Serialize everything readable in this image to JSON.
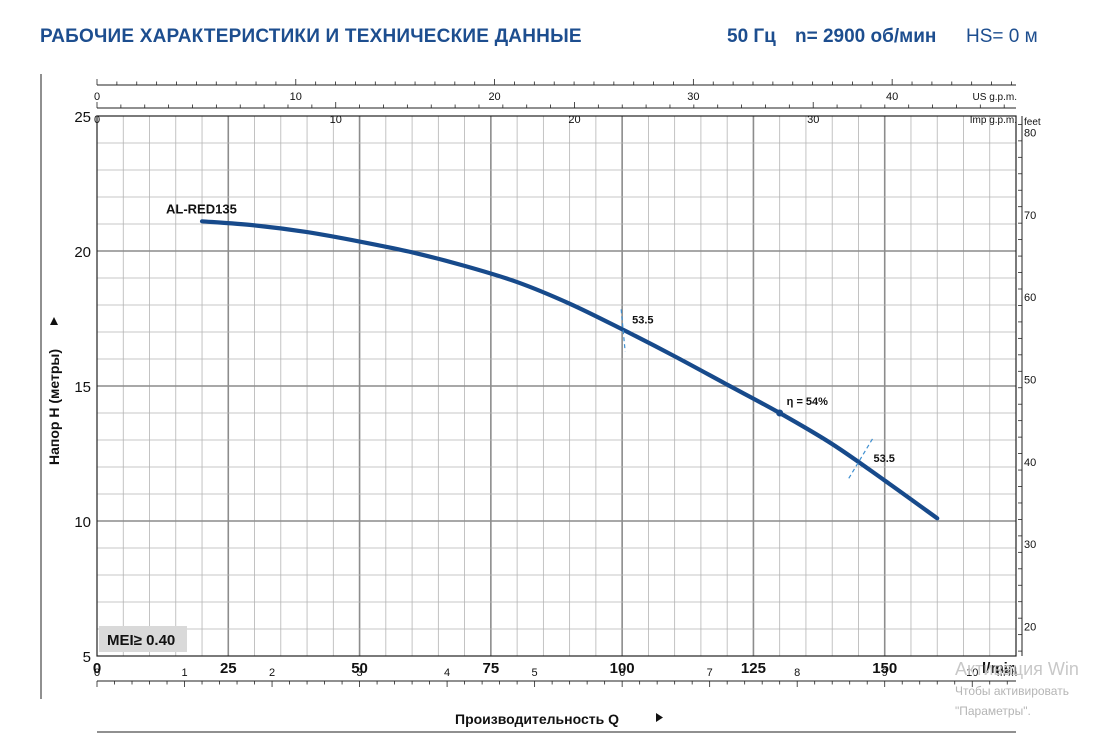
{
  "header": {
    "title": "РАБОЧИЕ ХАРАКТЕРИСТИКИ И ТЕХНИЧЕСКИЕ ДАННЫЕ",
    "frequency": "50 Гц",
    "speed": "n= 2900 об/мин",
    "hs": "HS= 0 м"
  },
  "watermark": {
    "line1": "Активация Win",
    "line2": "Чтобы активировать",
    "line3": "\"Параметры\"."
  },
  "colors": {
    "curve": "#174a8b",
    "grid": "#9a9a9a",
    "efficiency_marks": "#3f8fd0",
    "header_text": "#1d4e8f"
  },
  "chart_data": {
    "type": "line",
    "series": [
      {
        "name": "AL-RED135",
        "x": [
          20,
          30,
          40,
          50,
          60,
          70,
          80,
          90,
          100,
          110,
          120,
          130,
          140,
          150,
          160
        ],
        "values": [
          21.1,
          20.95,
          20.7,
          20.35,
          19.95,
          19.45,
          18.85,
          18.05,
          17.1,
          16.1,
          15.05,
          14.0,
          12.85,
          11.5,
          10.1
        ]
      }
    ],
    "xlabel": "Производительность Q",
    "x_unit": "l/min",
    "xlim": [
      0,
      175
    ],
    "x_ticks": [
      0,
      25,
      50,
      75,
      100,
      125,
      150
    ],
    "ylabel": "Напор H (метры)",
    "ylim": [
      5,
      25
    ],
    "y_ticks": [
      5,
      10,
      15,
      20,
      25
    ],
    "grid": true,
    "secondary_axes": {
      "us_gpm": {
        "label": "US g.p.m.",
        "ticks": [
          0,
          10,
          20,
          30,
          40
        ]
      },
      "imp_gpm": {
        "label": "Imp g.p.m.",
        "ticks": [
          0,
          10,
          20,
          30
        ]
      },
      "m3h": {
        "label": "m³/h",
        "ticks": [
          0,
          1,
          2,
          3,
          4,
          5,
          6,
          7,
          8,
          9,
          10
        ]
      },
      "feet": {
        "label": "feet",
        "ticks": [
          20,
          30,
          40,
          50,
          60,
          70,
          80
        ]
      }
    },
    "annotations": [
      {
        "text": "53.5",
        "x": 100,
        "y": 17.1
      },
      {
        "text": "η = 54%",
        "x": 130,
        "y": 14.0
      },
      {
        "text": "53.5",
        "x": 145,
        "y": 12.3
      }
    ],
    "badge": "MEI≥ 0.40"
  }
}
